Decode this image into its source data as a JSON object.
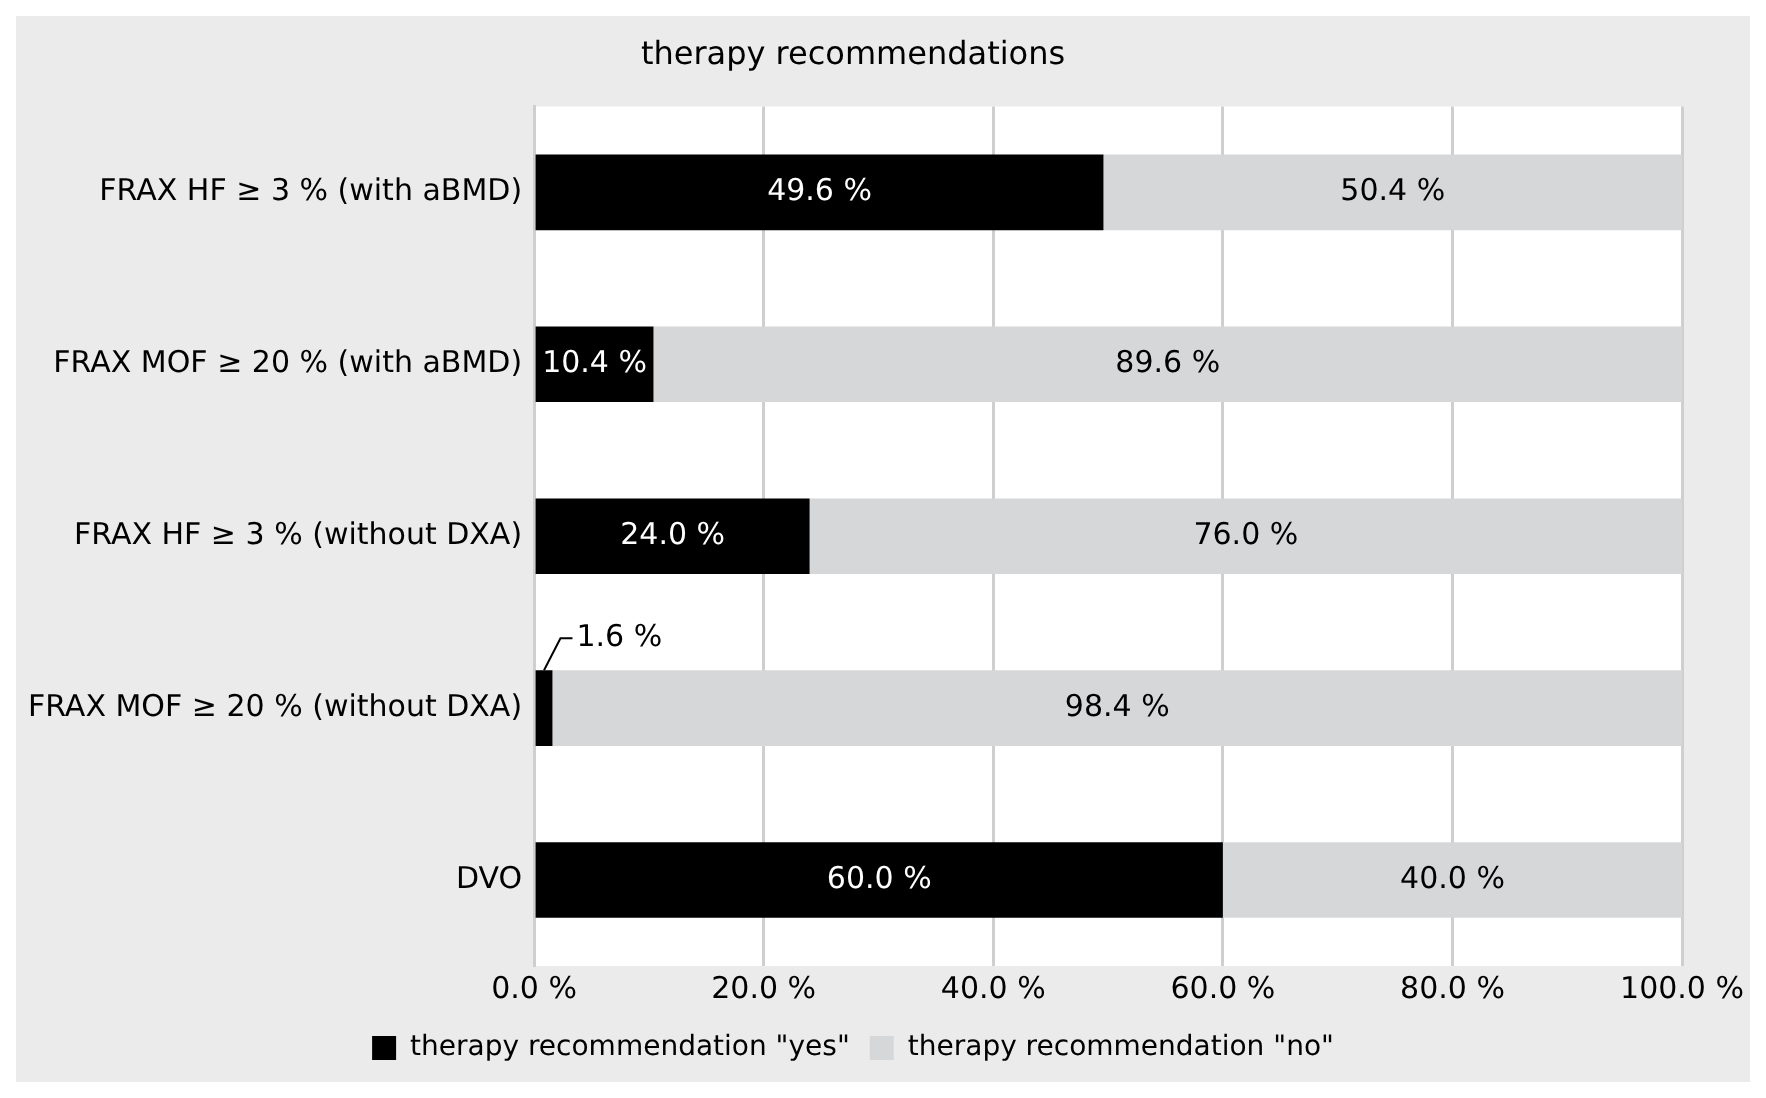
{
  "chart_data": {
    "type": "bar",
    "orientation": "horizontal",
    "stacked": true,
    "title": "therapy recommendations",
    "categories": [
      "FRAX HF ≥ 3 % (with aBMD)",
      "FRAX MOF ≥ 20 % (with aBMD)",
      "FRAX HF ≥ 3 % (without DXA)",
      "FRAX MOF ≥ 20 % (without DXA)",
      "DVO"
    ],
    "series": [
      {
        "name": "therapy recommendation \"yes\"",
        "color": "#000000",
        "values": [
          49.6,
          10.4,
          24.0,
          1.6,
          60.0
        ],
        "value_labels": [
          "49.6 %",
          "10.4 %",
          "24.0 %",
          "1.6 %",
          "60.0 %"
        ]
      },
      {
        "name": "therapy recommendation \"no\"",
        "color": "#d6d7d9",
        "values": [
          50.4,
          89.6,
          76.0,
          98.4,
          40.0
        ],
        "value_labels": [
          "50.4 %",
          "89.6 %",
          "76.0 %",
          "98.4 %",
          "40.0 %"
        ]
      }
    ],
    "xlim": [
      0,
      100
    ],
    "xticks": [
      {
        "value": 0,
        "label": "0.0 %"
      },
      {
        "value": 20,
        "label": "20.0 %"
      },
      {
        "value": 40,
        "label": "40.0 %"
      },
      {
        "value": 60,
        "label": "60.0 %"
      },
      {
        "value": 80,
        "label": "80.0 %"
      },
      {
        "value": 100,
        "label": "100.0 %"
      }
    ],
    "grid": "x",
    "legend": "bottom"
  }
}
